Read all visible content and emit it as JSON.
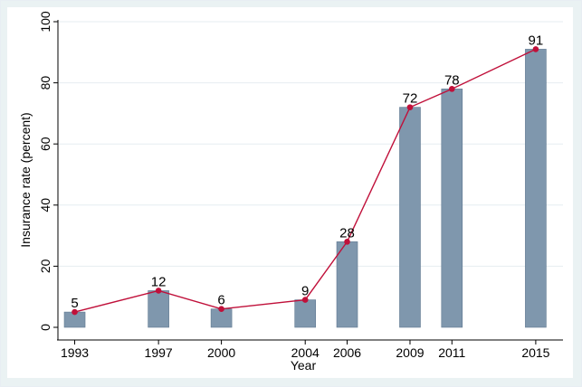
{
  "chart_data": {
    "type": "bar",
    "xlabel": "Year",
    "ylabel": "Insurance rate (percent)",
    "ylim": [
      0,
      100
    ],
    "yticks": [
      0,
      20,
      40,
      60,
      80,
      100
    ],
    "grid": true,
    "x": [
      1993,
      1997,
      2000,
      2004,
      2006,
      2009,
      2011,
      2015
    ],
    "categories": [
      "1993",
      "1997",
      "2000",
      "2004",
      "2006",
      "2009",
      "2011",
      "2015"
    ],
    "values": [
      5,
      12,
      6,
      9,
      28,
      72,
      78,
      91
    ],
    "overlay": "line",
    "colors": {
      "bar": "#7f97ad",
      "bar_edge": "#5f7890",
      "line": "#c0103a",
      "marker": "#c0103a",
      "grid": "#e6edf1"
    }
  }
}
